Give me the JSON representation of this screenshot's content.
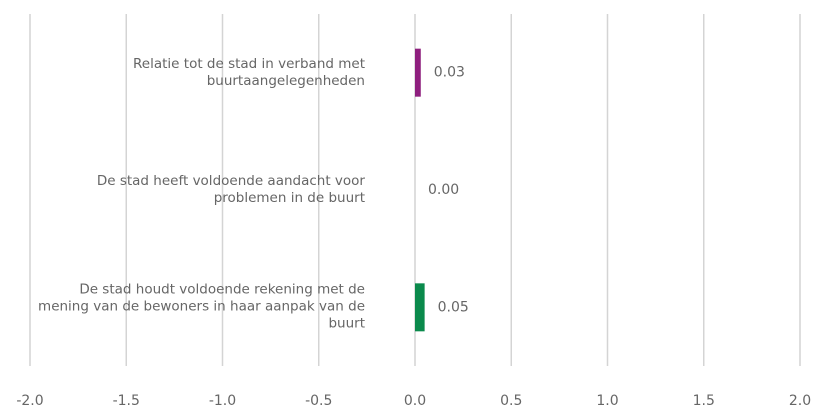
{
  "chart_data": {
    "type": "hbar",
    "categories": [
      "Relatie tot de stad in verband met buurtaangelegenheden",
      "De stad heeft voldoende aandacht voor problemen in de buurt",
      "De stad houdt voldoende rekening met de mening van de bewoners in haar aanpak van de buurt"
    ],
    "values": [
      0.03,
      0,
      0.05
    ],
    "value_labels": [
      "0.03",
      "0.00",
      "0.05"
    ],
    "colors": [
      "#8e1f7e",
      "#8e1f7e",
      "#0b8a4c"
    ],
    "xlim": [
      -2,
      2
    ],
    "xticks": [
      {
        "value": -2,
        "label": "-2.0"
      },
      {
        "value": -1.5,
        "label": "-1.5"
      },
      {
        "value": -1,
        "label": "-1.0"
      },
      {
        "value": -0.5,
        "label": "-0.5"
      },
      {
        "value": 0,
        "label": "0.0"
      },
      {
        "value": 0.5,
        "label": "0.5"
      },
      {
        "value": 1,
        "label": "1.0"
      },
      {
        "value": 1.5,
        "label": "1.5"
      },
      {
        "value": 2,
        "label": "2.0"
      }
    ],
    "grid": true
  }
}
